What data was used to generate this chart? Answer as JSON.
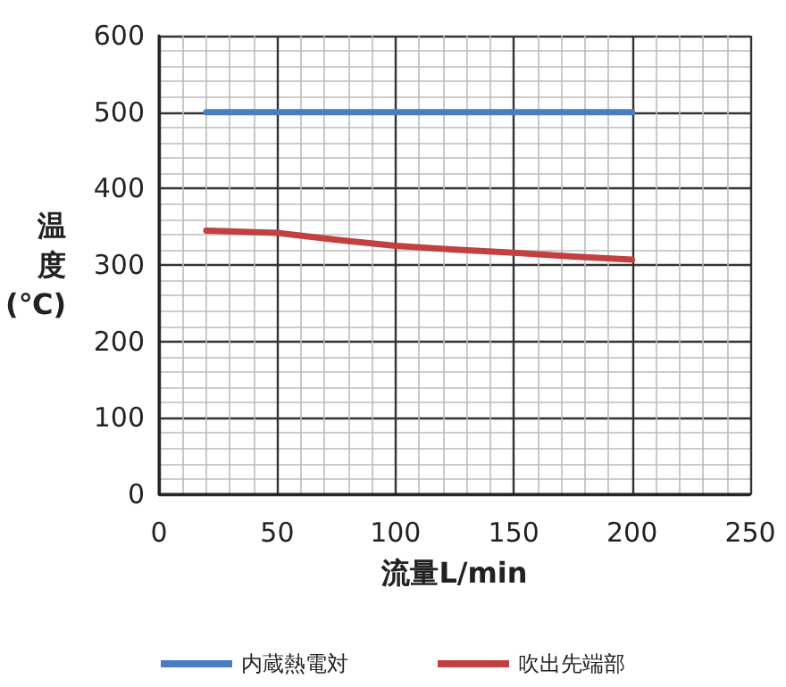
{
  "chart_data": {
    "type": "line",
    "xlabel": "流量L/min",
    "ylabel": "温度(℃)",
    "xlim": [
      0,
      250
    ],
    "xticks": [
      0,
      50,
      100,
      150,
      200,
      250
    ],
    "ylim": [
      0,
      600
    ],
    "yticks": [
      0,
      100,
      200,
      300,
      400,
      500,
      600
    ],
    "x": [
      20,
      50,
      75,
      100,
      125,
      150,
      175,
      200
    ],
    "series": [
      {
        "name": "内蔵熱電対",
        "color": "#4a7cc2",
        "values": [
          500,
          500,
          500,
          500,
          500,
          500,
          500,
          500
        ]
      },
      {
        "name": "吹出先端部",
        "color": "#c0413f",
        "values": [
          345,
          342,
          333,
          325,
          320,
          316,
          311,
          307
        ]
      }
    ],
    "grid": true,
    "legend": "bottom",
    "marker": "none",
    "line_style": "solid"
  }
}
